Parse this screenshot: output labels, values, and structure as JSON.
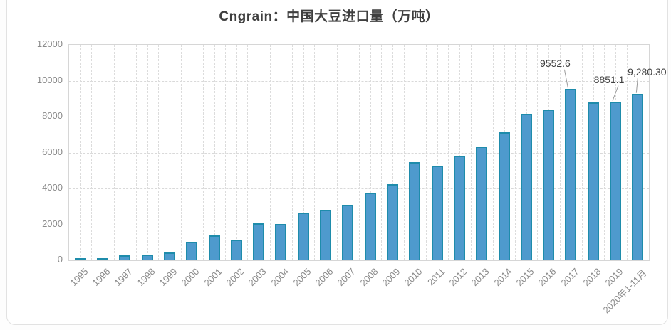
{
  "chart_data": {
    "type": "bar",
    "title": "Cngrain：中国大豆进口量（万吨）",
    "categories": [
      "1995",
      "1996",
      "1997",
      "1998",
      "1999",
      "2000",
      "2001",
      "2002",
      "2003",
      "2004",
      "2005",
      "2006",
      "2007",
      "2008",
      "2009",
      "2010",
      "2011",
      "2012",
      "2013",
      "2014",
      "2015",
      "2016",
      "2017",
      "2018",
      "2019",
      "2020年1-11月"
    ],
    "values": [
      30,
      111,
      288,
      320,
      432,
      1042,
      1394,
      1132,
      2074,
      2023,
      2659,
      2824,
      3082,
      3744,
      4255,
      5480,
      5264,
      5838,
      6338,
      7140,
      8169,
      8391,
      9552.6,
      8803,
      8851.1,
      9280.3
    ],
    "xlabel": "",
    "ylabel": "",
    "ylim": [
      0,
      12000
    ],
    "ytick_step": 2000,
    "yticks": [
      "0",
      "2000",
      "4000",
      "6000",
      "8000",
      "10000",
      "12000"
    ],
    "grid": "dashed horizontal and vertical",
    "legend": "none",
    "bar_fill_color": "#4e9acd",
    "bar_border_color": "#1e8cab",
    "annotations": [
      {
        "category": "2017",
        "value_label": "9552.6"
      },
      {
        "category": "2019",
        "value_label": "8851.1"
      },
      {
        "category": "2020年1-11月",
        "value_label": "9,280.30"
      }
    ]
  }
}
